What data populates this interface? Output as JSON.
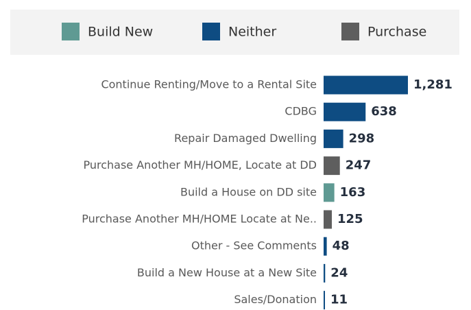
{
  "chart_data": {
    "type": "bar",
    "orientation": "horizontal",
    "categories": [
      "Continue Renting/Move to a Rental Site",
      "CDBG",
      "Repair Damaged Dwelling",
      "Purchase Another MH/HOME, Locate at DD",
      "Build a House on DD site",
      "Purchase Another MH/HOME Locate at Ne..",
      "Other - See Comments",
      "Build a New House at a New Site",
      "Sales/Donation"
    ],
    "series": [
      {
        "name": "Build New",
        "color": "#5f9a93",
        "values": [
          null,
          null,
          null,
          null,
          163,
          null,
          null,
          null,
          null
        ],
        "value_labels": [
          null,
          null,
          null,
          null,
          "163",
          null,
          null,
          null,
          null
        ]
      },
      {
        "name": "Neither",
        "color": "#0e4c82",
        "values": [
          1281,
          638,
          298,
          null,
          null,
          null,
          48,
          24,
          11
        ],
        "value_labels": [
          "1,281",
          "638",
          "298",
          null,
          null,
          null,
          "48",
          "24",
          "11"
        ]
      },
      {
        "name": "Purchase",
        "color": "#5e5e5e",
        "values": [
          null,
          null,
          null,
          247,
          null,
          125,
          null,
          null,
          null
        ],
        "value_labels": [
          null,
          null,
          null,
          "247",
          null,
          "125",
          null,
          null,
          null
        ]
      }
    ],
    "legend": "top"
  }
}
